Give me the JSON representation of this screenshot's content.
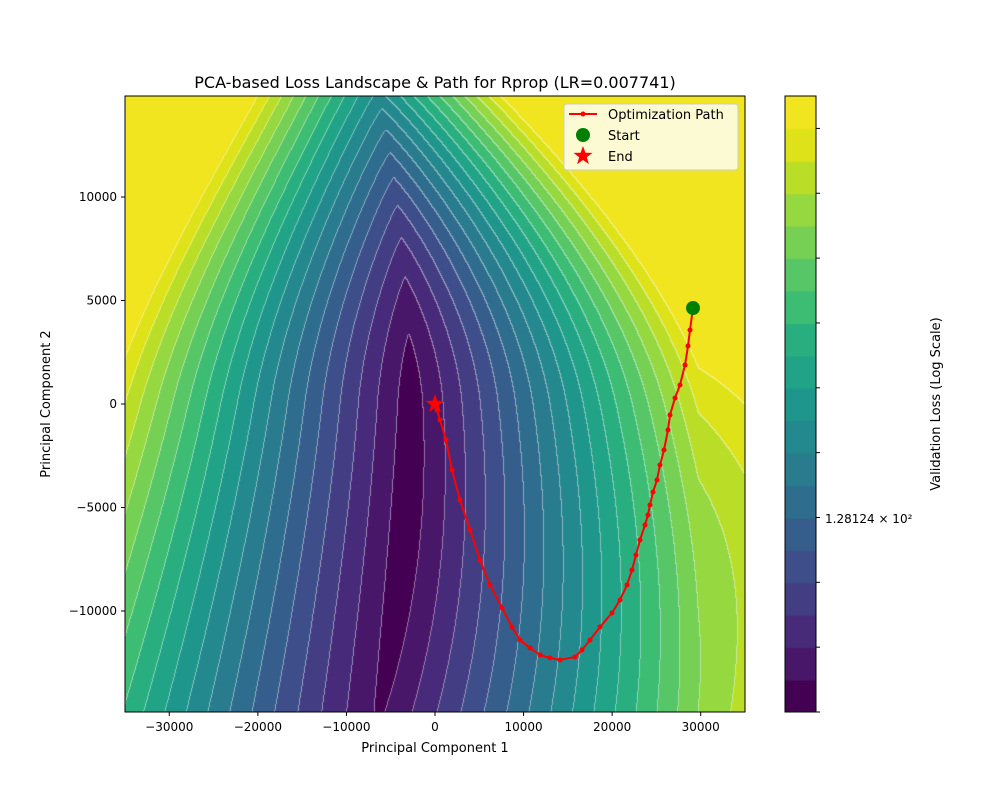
{
  "chart_data": {
    "type": "contour",
    "title": "PCA-based Loss Landscape & Path for Rprop (LR=0.007741)",
    "xlabel": "Principal Component 1",
    "ylabel": "Principal Component 2",
    "xlim": [
      -35000,
      35000
    ],
    "ylim": [
      -14880,
      14880
    ],
    "xticks": [
      -30000,
      -20000,
      -10000,
      0,
      10000,
      20000,
      30000
    ],
    "xtick_labels": [
      "−30000",
      "−20000",
      "−10000",
      "0",
      "10000",
      "20000",
      "30000"
    ],
    "yticks": [
      10000,
      5000,
      0,
      -5000,
      -10000
    ],
    "ytick_labels": [
      "10000",
      "5000",
      "0",
      "−5000",
      "−10000"
    ],
    "grid": false,
    "colormap": "viridis",
    "levels": 19,
    "colorbar": {
      "label": "Validation Loss (Log Scale)",
      "tick_label": "1.28124 × 10²",
      "tick_label_level_fraction": 0.316
    },
    "legend": {
      "location": "upper right",
      "entries": [
        "Optimization Path",
        "Start",
        "End"
      ]
    },
    "path": {
      "color": "#ff0000",
      "x": [
        29129,
        28790,
        28564,
        28225,
        27661,
        27097,
        26532,
        26306,
        25855,
        25403,
        25064,
        24612,
        24274,
        24048,
        23709,
        23145,
        22693,
        22241,
        21677,
        20887,
        19983,
        18629,
        17500,
        16596,
        15806,
        14113,
        12984,
        11855,
        10726,
        9597,
        8693,
        7564,
        6210,
        5081,
        3952,
        2823,
        1919,
        1242,
        565,
        226,
        0
      ],
      "y": [
        4637,
        3574,
        2801,
        1884,
        918,
        290,
        -531,
        -1256,
        -2222,
        -2946,
        -3671,
        -4250,
        -4878,
        -5361,
        -5844,
        -6569,
        -7293,
        -8018,
        -8742,
        -9467,
        -10095,
        -10771,
        -11399,
        -11882,
        -12220,
        -12365,
        -12268,
        -12123,
        -11785,
        -11399,
        -10771,
        -9853,
        -8742,
        -7535,
        -6086,
        -4637,
        -3188,
        -1739,
        -773,
        -290,
        0
      ]
    },
    "start": {
      "x": 29129,
      "y": 4637,
      "color": "#008000"
    },
    "end": {
      "x": 0,
      "y": 0,
      "color": "#ff0000"
    }
  }
}
